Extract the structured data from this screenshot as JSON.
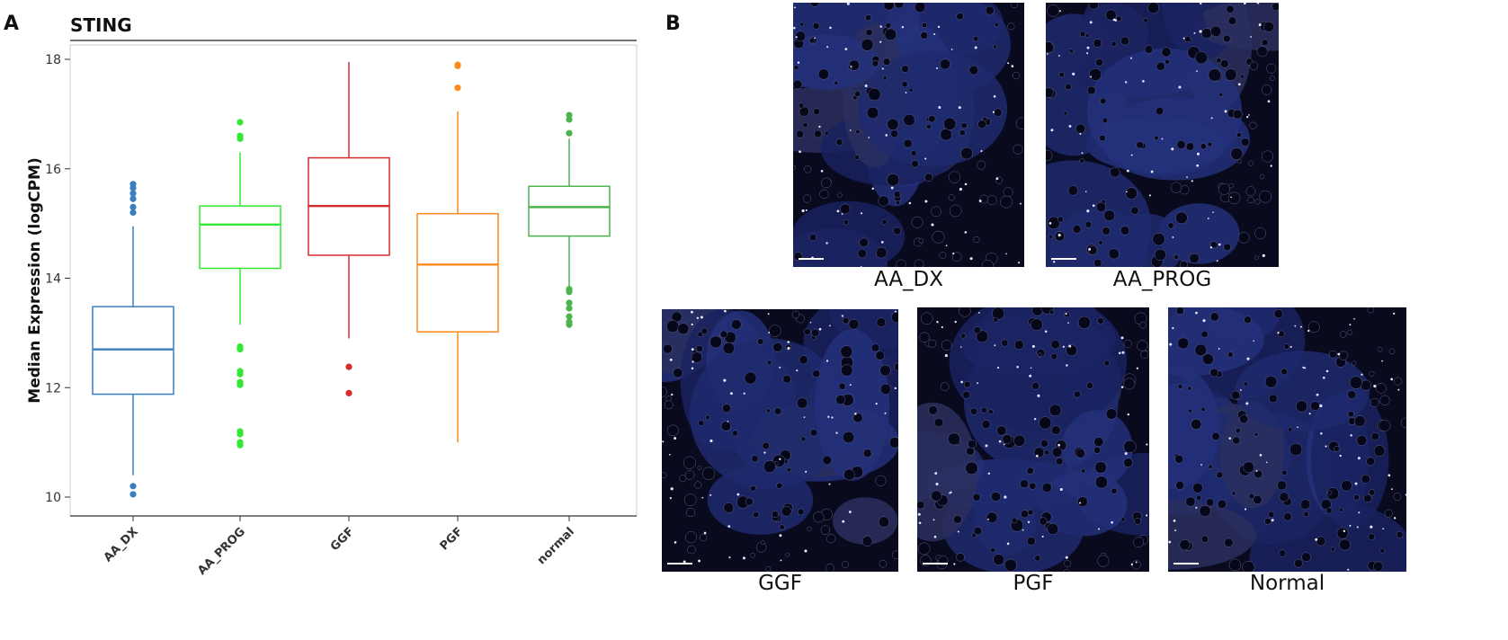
{
  "panels": {
    "a_label": "A",
    "b_label": "B"
  },
  "chart_data": {
    "type": "box",
    "title": "STING",
    "ylabel": "Median Expression (logCPM)",
    "xlabel": "",
    "ylim": [
      9.8,
      18.2
    ],
    "yticks": [
      10,
      12,
      14,
      16,
      18
    ],
    "grid": false,
    "legend": "none",
    "categories": [
      "AA_DX",
      "AA_PROG",
      "GGF",
      "PGF",
      "normal"
    ],
    "series": [
      {
        "color": "#3a7fc1",
        "q1": 11.88,
        "median": 12.7,
        "q3": 13.48,
        "whisker_low": 10.4,
        "whisker_high": 14.95,
        "outliers": [
          15.2,
          15.3,
          15.45,
          15.55,
          15.65,
          15.72,
          10.2,
          10.05
        ]
      },
      {
        "color": "#33e833",
        "q1": 14.18,
        "median": 14.98,
        "q3": 15.32,
        "whisker_low": 13.15,
        "whisker_high": 16.3,
        "outliers": [
          16.55,
          16.6,
          16.85,
          12.7,
          12.75,
          12.25,
          12.3,
          12.05,
          12.1,
          11.15,
          11.2,
          11.0,
          10.95
        ]
      },
      {
        "color": "#d62c2c",
        "q1": 14.42,
        "median": 15.32,
        "q3": 16.2,
        "whisker_low": 12.9,
        "whisker_high": 17.95,
        "outliers": [
          12.38,
          11.9
        ]
      },
      {
        "color": "#ff8a1c",
        "q1": 13.02,
        "median": 14.25,
        "q3": 15.18,
        "whisker_low": 11.0,
        "whisker_high": 17.05,
        "outliers": [
          17.48,
          17.88,
          17.9
        ]
      },
      {
        "color": "#4db34d",
        "q1": 14.77,
        "median": 15.3,
        "q3": 15.68,
        "whisker_low": 13.85,
        "whisker_high": 16.55,
        "outliers": [
          16.65,
          16.9,
          16.98,
          13.8,
          13.75,
          13.55,
          13.45,
          13.3,
          13.2,
          13.15
        ]
      }
    ]
  },
  "micrographs": [
    {
      "caption": "AA_DX"
    },
    {
      "caption": "AA_PROG"
    },
    {
      "caption": "GGF"
    },
    {
      "caption": "PGF"
    },
    {
      "caption": "Normal"
    }
  ]
}
